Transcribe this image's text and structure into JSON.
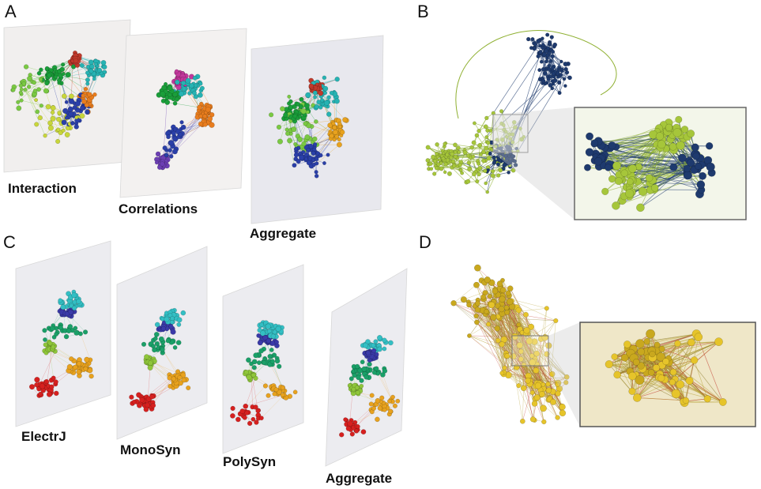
{
  "panels": {
    "a": {
      "letter": "A",
      "layers": [
        {
          "label": "Interaction",
          "colors": [
            "#1a9e3a",
            "#7ac943",
            "#c8d63a",
            "#2a3fa8",
            "#e87d1e",
            "#26b3b3",
            "#c0392b",
            "#8e44ad"
          ]
        },
        {
          "label": "Correlations",
          "colors": [
            "#1a9e3a",
            "#2a3fa8",
            "#6c3fb3",
            "#e87d1e",
            "#26b3b3",
            "#c2389c"
          ]
        },
        {
          "label": "Aggregate",
          "colors": [
            "#1a9e3a",
            "#7ac943",
            "#2a3fa8",
            "#e8a21e",
            "#26b3b3",
            "#c0392b"
          ]
        }
      ]
    },
    "b": {
      "letter": "B",
      "node_colors": [
        "#a6c63a",
        "#1e3a6e"
      ],
      "edge_colors": [
        "#8fb032",
        "#1e3a6e"
      ]
    },
    "c": {
      "letter": "C",
      "layers": [
        {
          "label": "ElectrJ"
        },
        {
          "label": "MonoSyn"
        },
        {
          "label": "PolySyn"
        },
        {
          "label": "Aggregate"
        }
      ],
      "node_colors": [
        "#d6201f",
        "#e8a21e",
        "#1aa068",
        "#33bfc4",
        "#3a3aa8",
        "#8fc63a"
      ]
    },
    "d": {
      "letter": "D",
      "node_colors": [
        "#e6c42a",
        "#c9a81e"
      ],
      "edge_colors": [
        "#b8a43a",
        "#c0392b",
        "#8a7a2a"
      ]
    }
  }
}
